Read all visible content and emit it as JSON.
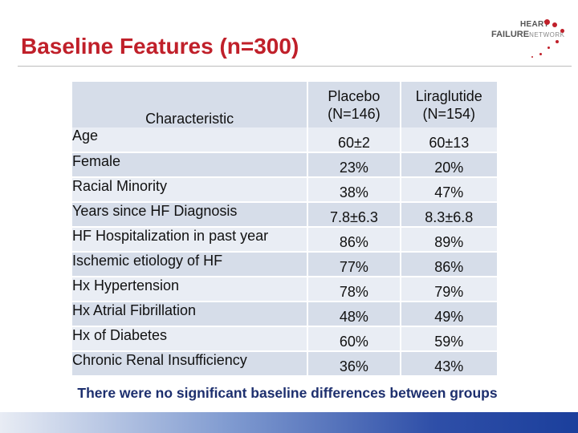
{
  "slide": {
    "title": "Baseline Features (n=300)",
    "logo": {
      "line1": "HEART",
      "line2_a": "FAILURE",
      "line2_b": "NETWORK"
    },
    "footnote": "There were no significant baseline differences between groups"
  },
  "table": {
    "headers": {
      "characteristic": "Characteristic",
      "placebo_line1": "Placebo",
      "placebo_line2": "(N=146)",
      "lira_line1": "Liraglutide",
      "lira_line2": "(N=154)"
    },
    "rows": [
      {
        "label": "Age",
        "placebo": "60±2",
        "lira": "60±13"
      },
      {
        "label": "Female",
        "placebo": "23%",
        "lira": "20%"
      },
      {
        "label": "Racial Minority",
        "placebo": "38%",
        "lira": "47%"
      },
      {
        "label": "Years since HF Diagnosis",
        "placebo": "7.8±6.3",
        "lira": "8.3±6.8"
      },
      {
        "label": "HF Hospitalization in past year",
        "placebo": "86%",
        "lira": "89%"
      },
      {
        "label": "Ischemic etiology of HF",
        "placebo": "77%",
        "lira": "86%"
      },
      {
        "label": "Hx Hypertension",
        "placebo": "78%",
        "lira": "79%"
      },
      {
        "label": "Hx Atrial Fibrillation",
        "placebo": "48%",
        "lira": "49%"
      },
      {
        "label": "Hx of Diabetes",
        "placebo": "60%",
        "lira": "59%"
      },
      {
        "label": "Chronic Renal Insufficiency",
        "placebo": "36%",
        "lira": "43%"
      }
    ]
  },
  "colors": {
    "title": "#c0202a",
    "footnote": "#1d2f6e",
    "row_light": "#e9edf4",
    "row_dark": "#d6dde9"
  }
}
